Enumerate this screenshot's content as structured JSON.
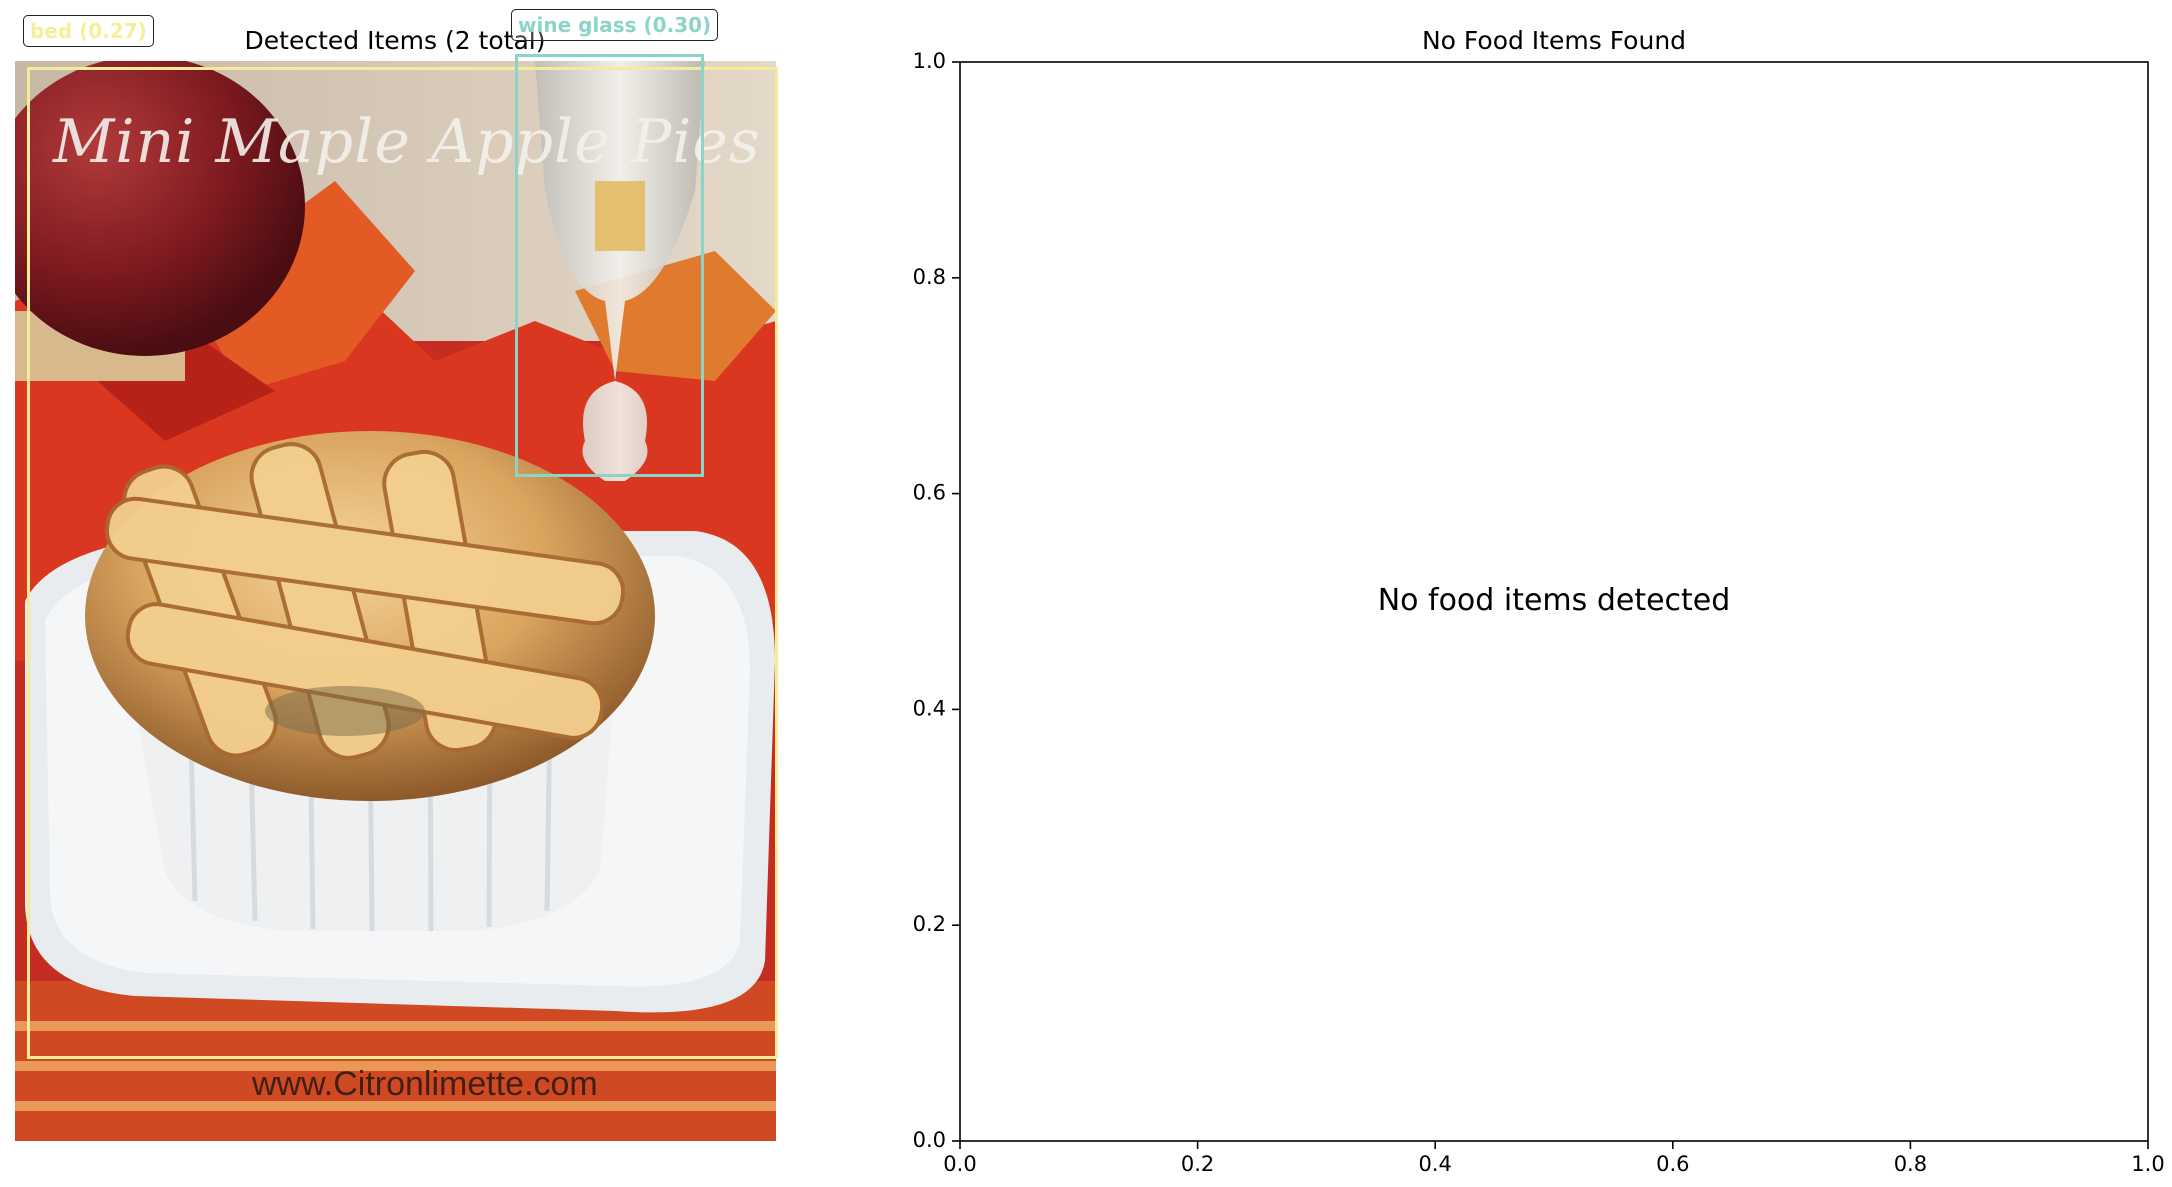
{
  "left_panel": {
    "title": "Detected Items (2 total)",
    "detections": [
      {
        "label": "bed (0.27)",
        "color": "#f3ec99"
      },
      {
        "label": "wine glass (0.30)",
        "color": "#8cd3c8"
      }
    ],
    "photo": {
      "overlay_title": "Mini Maple Apple Pies",
      "watermark": "www.Citronlimette.com"
    }
  },
  "right_panel": {
    "title": "No Food Items Found",
    "message": "No food items detected"
  },
  "chart_data": {
    "type": "scatter",
    "title": "No Food Items Found",
    "xlabel": "",
    "ylabel": "",
    "xlim": [
      0.0,
      1.0
    ],
    "ylim": [
      0.0,
      1.0
    ],
    "xticks": [
      "0.0",
      "0.2",
      "0.4",
      "0.6",
      "0.8",
      "1.0"
    ],
    "yticks": [
      "0.0",
      "0.2",
      "0.4",
      "0.6",
      "0.8",
      "1.0"
    ],
    "series": [],
    "annotations": [
      "No food items detected"
    ],
    "grid": false
  }
}
